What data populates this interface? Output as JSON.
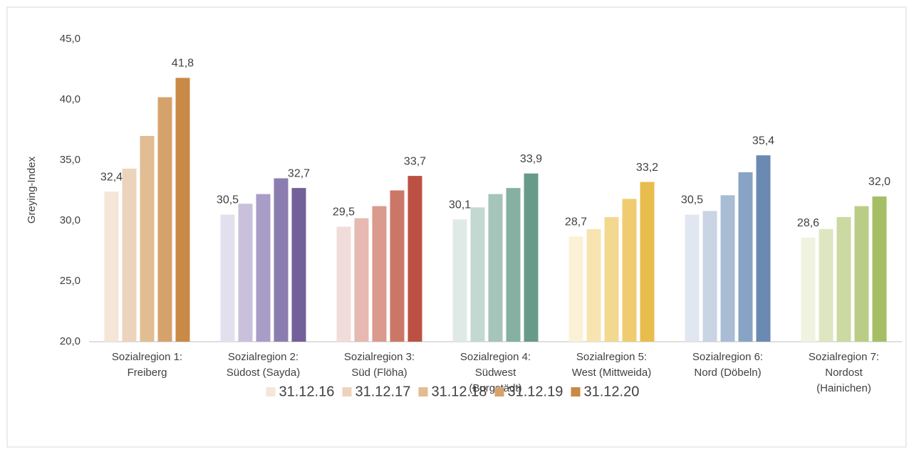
{
  "chart_data": {
    "type": "bar",
    "y_label": "Greying-Index",
    "categories": [
      "Sozialregion 1:\nFreiberg",
      "Sozialregion 2:\nSüdost (Sayda)",
      "Sozialregion 3:\nSüd (Flöha)",
      "Sozialregion 4:\nSüdwest\n(Burgstädt)",
      "Sozialregion 5:\nWest (Mittweida)",
      "Sozialregion 6:\nNord (Döbeln)",
      "Sozialregion 7:\nNordost\n(Hainichen)"
    ],
    "series": [
      {
        "name": "31.12.16",
        "color": "#f5e6d8",
        "colors": [
          "#f5e6d8",
          "#e3e0ee",
          "#f2dcd9",
          "#dfeae6",
          "#fbf1d6",
          "#e1e7f1",
          "#eff3e0"
        ],
        "values": [
          32.4,
          30.5,
          29.5,
          30.1,
          28.7,
          30.5,
          28.6
        ],
        "value_labels": [
          "32,4",
          "30,5",
          "29,5",
          "30,1",
          "28,7",
          "30,5",
          "28,6"
        ]
      },
      {
        "name": "31.12.17",
        "color": "#ecd3bb",
        "colors": [
          "#ecd3bb",
          "#c9c1dc",
          "#e7b9b2",
          "#c3d8d1",
          "#f7e4b0",
          "#c9d4e4",
          "#dde6c1"
        ],
        "values": [
          34.3,
          31.4,
          30.2,
          31.1,
          29.3,
          30.8,
          29.3
        ]
      },
      {
        "name": "31.12.18",
        "color": "#e2bc92",
        "colors": [
          "#e2bc92",
          "#a89dc6",
          "#da9a8e",
          "#a5c4ba",
          "#f3d88f",
          "#a8bcd4",
          "#cbd9a2"
        ],
        "values": [
          37.0,
          32.2,
          31.2,
          32.2,
          30.3,
          32.1,
          30.3
        ]
      },
      {
        "name": "31.12.19",
        "color": "#d6a26c",
        "colors": [
          "#d6a26c",
          "#8b7db0",
          "#cc7668",
          "#86b0a2",
          "#efcc70",
          "#88a3c4",
          "#bacd86"
        ],
        "values": [
          40.2,
          33.5,
          32.5,
          32.7,
          31.8,
          34.0,
          31.2
        ]
      },
      {
        "name": "31.12.20",
        "color": "#c98a46",
        "colors": [
          "#c98a46",
          "#735f9a",
          "#bc5143",
          "#689a89",
          "#e9bd4d",
          "#6a8ab3",
          "#a6bf66"
        ],
        "values": [
          41.8,
          32.7,
          33.7,
          33.9,
          33.2,
          35.4,
          32.0
        ],
        "value_labels": [
          "41,8",
          "32,7",
          "33,7",
          "33,9",
          "33,2",
          "35,4",
          "32,0"
        ]
      }
    ],
    "ylim": [
      20,
      45
    ],
    "yticks": [
      {
        "value": 20,
        "label": "20,0"
      },
      {
        "value": 25,
        "label": "25,0"
      },
      {
        "value": 30,
        "label": "30,0"
      },
      {
        "value": 35,
        "label": "35,0"
      },
      {
        "value": 40,
        "label": "40,0"
      },
      {
        "value": 45,
        "label": "45,0"
      }
    ],
    "grid": false
  }
}
